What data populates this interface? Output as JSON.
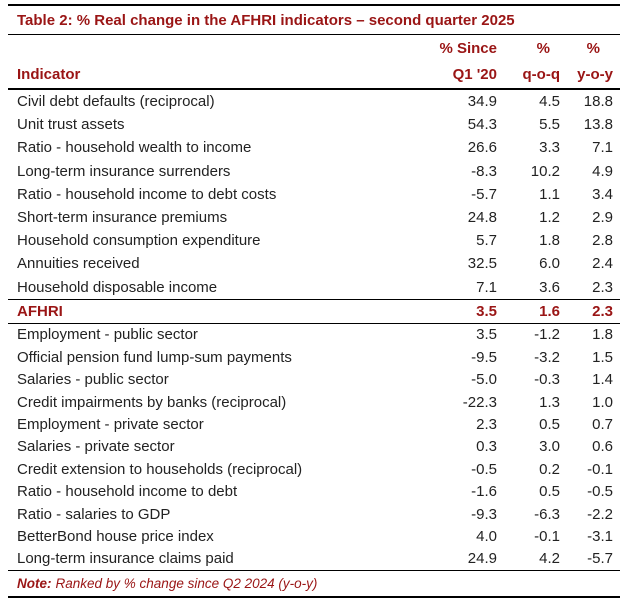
{
  "title": "Table 2: % Real change in the AFHRI indicators – second quarter 2025",
  "colors": {
    "accent": "#9a1515",
    "text": "#222222",
    "rule": "#000000"
  },
  "header": {
    "indicator_label": "Indicator",
    "columns": [
      {
        "line1": "% Since",
        "line2": "Q1 '20"
      },
      {
        "line1": "%",
        "line2": "q-o-q"
      },
      {
        "line1": "%",
        "line2": "y-o-y"
      }
    ]
  },
  "rows_above": [
    {
      "label": "Civil debt defaults (reciprocal)",
      "since": "34.9",
      "qoq": "4.5",
      "yoy": "18.8"
    },
    {
      "label": "Unit trust assets",
      "since": "54.3",
      "qoq": "5.5",
      "yoy": "13.8"
    },
    {
      "label": "Ratio - household wealth to income",
      "since": "26.6",
      "qoq": "3.3",
      "yoy": "7.1"
    },
    {
      "label": "Long-term insurance surrenders",
      "since": "-8.3",
      "qoq": "10.2",
      "yoy": "4.9"
    },
    {
      "label": "Ratio - household income to debt costs",
      "since": "-5.7",
      "qoq": "1.1",
      "yoy": "3.4"
    },
    {
      "label": "Short-term insurance premiums",
      "since": "24.8",
      "qoq": "1.2",
      "yoy": "2.9"
    },
    {
      "label": "Household consumption expenditure",
      "since": "5.7",
      "qoq": "1.8",
      "yoy": "2.8"
    },
    {
      "label": "Annuities received",
      "since": "32.5",
      "qoq": "6.0",
      "yoy": "2.4"
    },
    {
      "label": "Household disposable income",
      "since": "7.1",
      "qoq": "3.6",
      "yoy": "2.3"
    }
  ],
  "afhri_row": {
    "label": "AFHRI",
    "since": "3.5",
    "qoq": "1.6",
    "yoy": "2.3"
  },
  "rows_below": [
    {
      "label": "Employment - public sector",
      "since": "3.5",
      "qoq": "-1.2",
      "yoy": "1.8"
    },
    {
      "label": "Official pension fund lump-sum payments",
      "since": "-9.5",
      "qoq": "-3.2",
      "yoy": "1.5"
    },
    {
      "label": "Salaries - public sector",
      "since": "-5.0",
      "qoq": "-0.3",
      "yoy": "1.4"
    },
    {
      "label": "Credit impairments by banks (reciprocal)",
      "since": "-22.3",
      "qoq": "1.3",
      "yoy": "1.0"
    },
    {
      "label": "Employment - private sector",
      "since": "2.3",
      "qoq": "0.5",
      "yoy": "0.7"
    },
    {
      "label": "Salaries - private sector",
      "since": "0.3",
      "qoq": "3.0",
      "yoy": "0.6"
    },
    {
      "label": "Credit extension to households (reciprocal)",
      "since": "-0.5",
      "qoq": "0.2",
      "yoy": "-0.1"
    },
    {
      "label": "Ratio - household income to debt",
      "since": "-1.6",
      "qoq": "0.5",
      "yoy": "-0.5"
    },
    {
      "label": "Ratio - salaries to GDP",
      "since": "-9.3",
      "qoq": "-6.3",
      "yoy": "-2.2"
    },
    {
      "label": "BetterBond house price index",
      "since": "4.0",
      "qoq": "-0.1",
      "yoy": "-3.1"
    },
    {
      "label": "Long-term insurance claims paid",
      "since": "24.9",
      "qoq": "4.2",
      "yoy": "-5.7"
    }
  ],
  "note": {
    "prefix": "Note:",
    "text": "Ranked by % change since Q2 2024 (y-o-y)"
  },
  "chart_data": {
    "type": "table",
    "title": "Table 2: % Real change in the AFHRI indicators – second quarter 2025",
    "columns": [
      "Indicator",
      "% Since Q1 '20",
      "% q-o-q",
      "% y-o-y"
    ],
    "rows": [
      [
        "Civil debt defaults (reciprocal)",
        34.9,
        4.5,
        18.8
      ],
      [
        "Unit trust assets",
        54.3,
        5.5,
        13.8
      ],
      [
        "Ratio - household wealth to income",
        26.6,
        3.3,
        7.1
      ],
      [
        "Long-term insurance surrenders",
        -8.3,
        10.2,
        4.9
      ],
      [
        "Ratio - household income to debt costs",
        -5.7,
        1.1,
        3.4
      ],
      [
        "Short-term insurance premiums",
        24.8,
        1.2,
        2.9
      ],
      [
        "Household consumption expenditure",
        5.7,
        1.8,
        2.8
      ],
      [
        "Annuities received",
        32.5,
        6.0,
        2.4
      ],
      [
        "Household disposable income",
        7.1,
        3.6,
        2.3
      ],
      [
        "AFHRI",
        3.5,
        1.6,
        2.3
      ],
      [
        "Employment - public sector",
        3.5,
        -1.2,
        1.8
      ],
      [
        "Official pension fund lump-sum payments",
        -9.5,
        -3.2,
        1.5
      ],
      [
        "Salaries - public sector",
        -5.0,
        -0.3,
        1.4
      ],
      [
        "Credit impairments by banks (reciprocal)",
        -22.3,
        1.3,
        1.0
      ],
      [
        "Employment - private sector",
        2.3,
        0.5,
        0.7
      ],
      [
        "Salaries - private sector",
        0.3,
        3.0,
        0.6
      ],
      [
        "Credit extension to households (reciprocal)",
        -0.5,
        0.2,
        -0.1
      ],
      [
        "Ratio - household income to debt",
        -1.6,
        0.5,
        -0.5
      ],
      [
        "Ratio - salaries to GDP",
        -9.3,
        -6.3,
        -2.2
      ],
      [
        "BetterBond house price index",
        4.0,
        -0.1,
        -3.1
      ],
      [
        "Long-term insurance claims paid",
        24.9,
        4.2,
        -5.7
      ]
    ],
    "note": "Ranked by % change since Q2 2024 (y-o-y)",
    "highlighted_row": "AFHRI"
  }
}
